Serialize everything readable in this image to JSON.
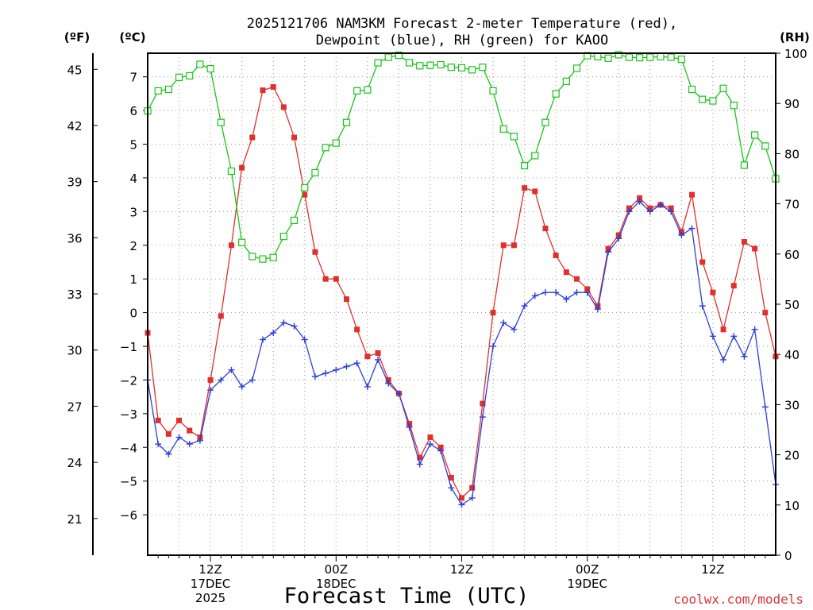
{
  "chart_data": {
    "type": "line",
    "title": [
      "2025121706 NAM3KM Forecast 2-meter Temperature (red),",
      "Dewpoint (blue), RH (green) for KAOO"
    ],
    "xlabel": "Forecast Time (UTC)",
    "units": {
      "left_f": "(ºF)",
      "left_c": "(ºC)",
      "right": "(RH)"
    },
    "credit": "coolwx.com/models",
    "x_hours_range": [
      0,
      60
    ],
    "x_ticks": [
      {
        "hour": 6,
        "lines": [
          "12Z",
          "17DEC",
          "2025"
        ]
      },
      {
        "hour": 18,
        "lines": [
          "00Z",
          "18DEC"
        ]
      },
      {
        "hour": 30,
        "lines": [
          "12Z"
        ]
      },
      {
        "hour": 42,
        "lines": [
          "00Z",
          "19DEC"
        ]
      },
      {
        "hour": 54,
        "lines": [
          "12Z"
        ]
      }
    ],
    "y_celsius": {
      "range": [
        -7.2,
        7.7
      ],
      "ticks": [
        7,
        6,
        5,
        4,
        3,
        2,
        1,
        0,
        -1,
        -2,
        -3,
        -4,
        -5,
        -6
      ],
      "tick_labels": [
        "7",
        "6",
        "5",
        "4",
        "3",
        "2",
        "1",
        "0",
        "−1",
        "−2",
        "−3",
        "−4",
        "−5",
        "−6"
      ]
    },
    "y_fahrenheit": {
      "ticks": [
        45,
        42,
        39,
        36,
        33,
        30,
        27,
        24,
        21
      ],
      "tick_labels": [
        "45",
        "42",
        "39",
        "36",
        "33",
        "30",
        "27",
        "24",
        "21"
      ]
    },
    "y_rh": {
      "range": [
        0,
        100
      ],
      "ticks": [
        100,
        90,
        80,
        70,
        60,
        50,
        40,
        30,
        20,
        10,
        0
      ],
      "tick_labels": [
        "100",
        "90",
        "80",
        "70",
        "60",
        "50",
        "40",
        "30",
        "20",
        "10",
        "0"
      ]
    },
    "series": [
      {
        "name": "2-meter Temperature",
        "axis": "celsius",
        "color": "#e0302c",
        "marker": "filled-square",
        "values": [
          -0.6,
          -3.2,
          -3.6,
          -3.2,
          -3.5,
          -3.7,
          -2.0,
          -0.1,
          2.0,
          4.3,
          5.2,
          6.6,
          6.7,
          6.1,
          5.2,
          3.5,
          1.8,
          1.0,
          1.0,
          0.4,
          -0.5,
          -1.3,
          -1.2,
          -2.0,
          -2.4,
          -3.3,
          -4.3,
          -3.7,
          -4.0,
          -4.9,
          -5.5,
          -5.2,
          -2.7,
          0.0,
          2.0,
          2.0,
          3.7,
          3.6,
          2.5,
          1.7,
          1.2,
          1.0,
          0.7,
          0.2,
          1.9,
          2.3,
          3.1,
          3.4,
          3.1,
          3.2,
          3.1,
          2.4,
          3.5,
          1.5,
          0.6,
          -0.5,
          0.8,
          2.1,
          1.9,
          0.0,
          -1.3
        ]
      },
      {
        "name": "Dewpoint",
        "axis": "celsius",
        "color": "#2d3fd6",
        "marker": "plus",
        "values": [
          -2.0,
          -3.9,
          -4.2,
          -3.7,
          -3.9,
          -3.8,
          -2.3,
          -2.0,
          -1.7,
          -2.2,
          -2.0,
          -0.8,
          -0.6,
          -0.3,
          -0.4,
          -0.8,
          -1.9,
          -1.8,
          -1.7,
          -1.6,
          -1.5,
          -2.2,
          -1.4,
          -2.1,
          -2.4,
          -3.4,
          -4.5,
          -3.9,
          -4.1,
          -5.2,
          -5.7,
          -5.5,
          -3.1,
          -1.0,
          -0.3,
          -0.5,
          0.2,
          0.5,
          0.6,
          0.6,
          0.4,
          0.6,
          0.6,
          0.1,
          1.8,
          2.2,
          3.0,
          3.3,
          3.0,
          3.2,
          3.0,
          2.3,
          2.5,
          0.2,
          -0.7,
          -1.4,
          -0.7,
          -1.3,
          -0.5,
          -2.8,
          -5.1
        ]
      },
      {
        "name": "RH",
        "axis": "rh",
        "color": "#19c419",
        "marker": "open-square",
        "values": [
          88.5,
          92.5,
          92.8,
          95.2,
          95.5,
          97.8,
          96.9,
          86.2,
          76.5,
          62.3,
          59.5,
          59.0,
          59.3,
          63.5,
          66.7,
          73.2,
          76.2,
          81.2,
          82.1,
          86.2,
          92.5,
          92.7,
          98.1,
          99.2,
          99.6,
          98.1,
          97.5,
          97.6,
          97.7,
          97.2,
          97.1,
          96.7,
          97.2,
          92.5,
          84.9,
          83.4,
          77.6,
          79.6,
          86.2,
          91.9,
          94.4,
          97.0,
          99.5,
          99.3,
          99.0,
          99.7,
          99.2,
          99.1,
          99.2,
          99.3,
          99.2,
          98.8,
          92.8,
          90.8,
          90.5,
          93.0,
          89.6,
          77.7,
          83.7,
          81.5,
          75.0
        ]
      }
    ]
  }
}
